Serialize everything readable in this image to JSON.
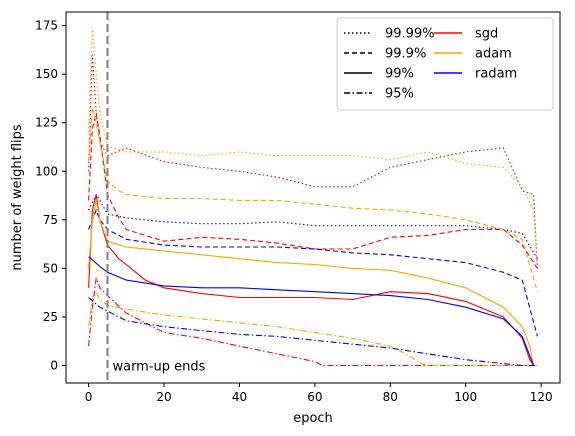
{
  "chart_data": {
    "type": "line",
    "xlabel": "epoch",
    "ylabel": "number of weight flips",
    "xlim": [
      -6,
      125
    ],
    "ylim": [
      -9,
      182
    ],
    "xticks": [
      0,
      20,
      40,
      60,
      80,
      100,
      120
    ],
    "yticks": [
      0,
      25,
      50,
      75,
      100,
      125,
      150,
      175
    ],
    "grid": false,
    "legend_position": "top-right",
    "legend": {
      "styles": [
        {
          "label": "99.99%",
          "dash": "dotted"
        },
        {
          "label": "99.9%",
          "dash": "dashed"
        },
        {
          "label": "99%",
          "dash": "solid"
        },
        {
          "label": "95%",
          "dash": "dashdot"
        }
      ],
      "optimizers": [
        {
          "label": "sgd",
          "color": "#ff0000"
        },
        {
          "label": "adam",
          "color": "#ffa500"
        },
        {
          "label": "radam",
          "color": "#0000ff"
        }
      ]
    },
    "annotation": {
      "text": "warm-up ends",
      "x": 5
    },
    "series": [
      {
        "optimizer": "sgd",
        "style": "99.99%",
        "color": "#ff0000",
        "points": [
          [
            0,
            100
          ],
          [
            1,
            160
          ],
          [
            2,
            130
          ],
          [
            3,
            115
          ],
          [
            5,
            108
          ],
          [
            10,
            112
          ],
          [
            20,
            105
          ],
          [
            30,
            102
          ],
          [
            40,
            100
          ],
          [
            50,
            97
          ],
          [
            60,
            92
          ],
          [
            70,
            92
          ],
          [
            80,
            102
          ],
          [
            90,
            106
          ],
          [
            100,
            110
          ],
          [
            110,
            112
          ],
          [
            115,
            90
          ],
          [
            118,
            88
          ],
          [
            119,
            50
          ]
        ]
      },
      {
        "optimizer": "adam",
        "style": "99.99%",
        "color": "#ffa500",
        "points": [
          [
            0,
            120
          ],
          [
            1,
            174
          ],
          [
            2,
            150
          ],
          [
            3,
            130
          ],
          [
            5,
            113
          ],
          [
            10,
            110
          ],
          [
            20,
            110
          ],
          [
            30,
            108
          ],
          [
            40,
            110
          ],
          [
            50,
            108
          ],
          [
            60,
            108
          ],
          [
            70,
            108
          ],
          [
            80,
            106
          ],
          [
            90,
            110
          ],
          [
            100,
            104
          ],
          [
            110,
            102
          ],
          [
            115,
            92
          ],
          [
            118,
            80
          ],
          [
            119,
            52
          ]
        ]
      },
      {
        "optimizer": "radam",
        "style": "99.99%",
        "color": "#0000ff",
        "points": [
          [
            0,
            80
          ],
          [
            2,
            88
          ],
          [
            3,
            85
          ],
          [
            5,
            78
          ],
          [
            10,
            76
          ],
          [
            20,
            74
          ],
          [
            30,
            73
          ],
          [
            40,
            73
          ],
          [
            50,
            74
          ],
          [
            60,
            72
          ],
          [
            70,
            72
          ],
          [
            80,
            72
          ],
          [
            90,
            72
          ],
          [
            100,
            72
          ],
          [
            110,
            70
          ],
          [
            115,
            68
          ],
          [
            119,
            55
          ]
        ]
      },
      {
        "optimizer": "sgd",
        "style": "99.9%",
        "color": "#ff0000",
        "points": [
          [
            0,
            85
          ],
          [
            1,
            122
          ],
          [
            2,
            130
          ],
          [
            3,
            118
          ],
          [
            5,
            88
          ],
          [
            8,
            76
          ],
          [
            10,
            70
          ],
          [
            20,
            64
          ],
          [
            30,
            66
          ],
          [
            40,
            65
          ],
          [
            50,
            63
          ],
          [
            60,
            60
          ],
          [
            70,
            60
          ],
          [
            80,
            66
          ],
          [
            90,
            67
          ],
          [
            100,
            70
          ],
          [
            110,
            70
          ],
          [
            115,
            62
          ],
          [
            119,
            50
          ]
        ]
      },
      {
        "optimizer": "adam",
        "style": "99.9%",
        "color": "#ffa500",
        "points": [
          [
            0,
            105
          ],
          [
            1,
            133
          ],
          [
            2,
            125
          ],
          [
            3,
            115
          ],
          [
            5,
            95
          ],
          [
            8,
            90
          ],
          [
            10,
            88
          ],
          [
            20,
            86
          ],
          [
            30,
            86
          ],
          [
            40,
            85
          ],
          [
            50,
            85
          ],
          [
            60,
            83
          ],
          [
            70,
            81
          ],
          [
            80,
            80
          ],
          [
            90,
            78
          ],
          [
            100,
            75
          ],
          [
            110,
            70
          ],
          [
            115,
            65
          ],
          [
            119,
            38
          ]
        ]
      },
      {
        "optimizer": "radam",
        "style": "99.9%",
        "color": "#0000ff",
        "points": [
          [
            0,
            70
          ],
          [
            2,
            80
          ],
          [
            3,
            75
          ],
          [
            5,
            70
          ],
          [
            10,
            65
          ],
          [
            20,
            62
          ],
          [
            30,
            61
          ],
          [
            40,
            61
          ],
          [
            50,
            61
          ],
          [
            60,
            60
          ],
          [
            70,
            58
          ],
          [
            80,
            57
          ],
          [
            90,
            55
          ],
          [
            100,
            53
          ],
          [
            110,
            48
          ],
          [
            115,
            44
          ],
          [
            119,
            15
          ]
        ]
      },
      {
        "optimizer": "sgd",
        "style": "99%",
        "color": "#ff0000",
        "points": [
          [
            0,
            40
          ],
          [
            1,
            80
          ],
          [
            2,
            88
          ],
          [
            3,
            75
          ],
          [
            5,
            62
          ],
          [
            8,
            55
          ],
          [
            10,
            52
          ],
          [
            15,
            44
          ],
          [
            20,
            40
          ],
          [
            30,
            37
          ],
          [
            40,
            35
          ],
          [
            50,
            35
          ],
          [
            60,
            35
          ],
          [
            70,
            34
          ],
          [
            80,
            38
          ],
          [
            90,
            37
          ],
          [
            100,
            33
          ],
          [
            110,
            25
          ],
          [
            115,
            14
          ],
          [
            117,
            3
          ],
          [
            118,
            0
          ]
        ]
      },
      {
        "optimizer": "adam",
        "style": "99%",
        "color": "#ffa500",
        "points": [
          [
            0,
            50
          ],
          [
            1,
            75
          ],
          [
            2,
            85
          ],
          [
            3,
            75
          ],
          [
            5,
            64
          ],
          [
            10,
            61
          ],
          [
            20,
            59
          ],
          [
            30,
            57
          ],
          [
            40,
            55
          ],
          [
            50,
            53
          ],
          [
            60,
            52
          ],
          [
            70,
            50
          ],
          [
            80,
            49
          ],
          [
            90,
            45
          ],
          [
            100,
            40
          ],
          [
            110,
            30
          ],
          [
            115,
            20
          ],
          [
            117,
            10
          ],
          [
            118,
            0
          ]
        ]
      },
      {
        "optimizer": "radam",
        "style": "99%",
        "color": "#0000ff",
        "points": [
          [
            0,
            56
          ],
          [
            3,
            51
          ],
          [
            5,
            48
          ],
          [
            10,
            44
          ],
          [
            20,
            41
          ],
          [
            30,
            40
          ],
          [
            40,
            40
          ],
          [
            50,
            39
          ],
          [
            60,
            38
          ],
          [
            70,
            37
          ],
          [
            80,
            36
          ],
          [
            90,
            34
          ],
          [
            100,
            30
          ],
          [
            110,
            24
          ],
          [
            115,
            15
          ],
          [
            117,
            5
          ],
          [
            118,
            0
          ]
        ]
      },
      {
        "optimizer": "sgd",
        "style": "95%",
        "color": "#ff0000",
        "points": [
          [
            0,
            10
          ],
          [
            1,
            30
          ],
          [
            2,
            45
          ],
          [
            3,
            40
          ],
          [
            5,
            36
          ],
          [
            10,
            27
          ],
          [
            20,
            17
          ],
          [
            30,
            14
          ],
          [
            40,
            10
          ],
          [
            50,
            6
          ],
          [
            60,
            2
          ],
          [
            62,
            0
          ],
          [
            90,
            0
          ],
          [
            119,
            0
          ]
        ]
      },
      {
        "optimizer": "adam",
        "style": "95%",
        "color": "#ffa500",
        "points": [
          [
            0,
            20
          ],
          [
            1,
            35
          ],
          [
            2,
            38
          ],
          [
            3,
            34
          ],
          [
            5,
            31
          ],
          [
            10,
            29
          ],
          [
            20,
            26
          ],
          [
            30,
            24
          ],
          [
            40,
            22
          ],
          [
            50,
            20
          ],
          [
            60,
            17
          ],
          [
            70,
            14
          ],
          [
            80,
            10
          ],
          [
            85,
            5
          ],
          [
            88,
            1
          ],
          [
            90,
            0
          ],
          [
            119,
            0
          ]
        ]
      },
      {
        "optimizer": "radam",
        "style": "95%",
        "color": "#0000ff",
        "points": [
          [
            0,
            35
          ],
          [
            3,
            30
          ],
          [
            5,
            28
          ],
          [
            10,
            23
          ],
          [
            20,
            20
          ],
          [
            30,
            18
          ],
          [
            40,
            16
          ],
          [
            50,
            15
          ],
          [
            60,
            13
          ],
          [
            70,
            11
          ],
          [
            80,
            9
          ],
          [
            90,
            6
          ],
          [
            100,
            3
          ],
          [
            110,
            1
          ],
          [
            115,
            0
          ],
          [
            119,
            0
          ]
        ]
      }
    ]
  }
}
